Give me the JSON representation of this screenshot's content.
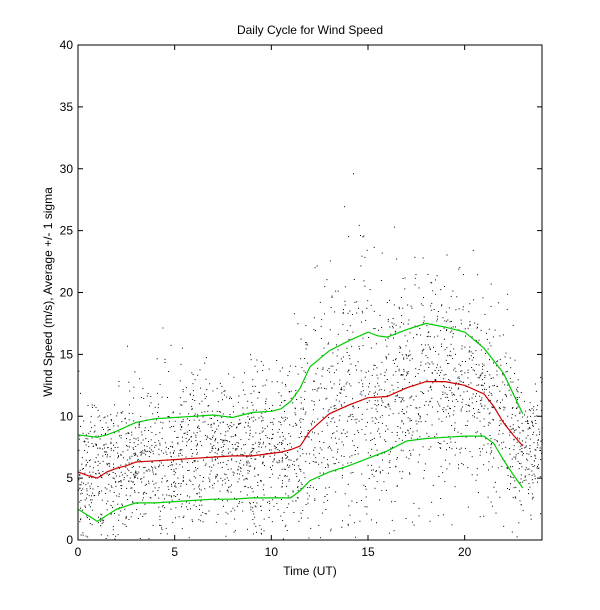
{
  "chart_data": {
    "type": "scatter",
    "title": "Daily Cycle for Wind Speed",
    "xlabel": "Time (UT)",
    "ylabel": "Wind Speed (m/s), Average +/- 1 sigma",
    "xlim": [
      0,
      24
    ],
    "ylim": [
      0,
      40
    ],
    "xticks": [
      0,
      5,
      10,
      15,
      20
    ],
    "yticks": [
      0,
      5,
      10,
      15,
      20,
      25,
      30,
      35,
      40
    ],
    "grid": false,
    "scatter_points": 3000,
    "series": [
      {
        "name": "Average",
        "color": "#cc0000",
        "x": [
          0,
          0.5,
          1,
          1.5,
          2,
          2.5,
          3,
          4,
          5,
          6,
          7,
          8,
          9,
          10,
          10.5,
          11,
          11.5,
          12,
          13,
          14,
          15,
          16,
          17,
          18,
          19,
          20,
          21,
          21.5,
          22,
          22.5,
          23
        ],
        "values": [
          5.5,
          5.2,
          5.0,
          5.5,
          5.8,
          6.0,
          6.3,
          6.4,
          6.5,
          6.6,
          6.7,
          6.8,
          6.8,
          7.0,
          7.1,
          7.3,
          7.6,
          8.8,
          10.2,
          10.9,
          11.5,
          11.6,
          12.3,
          12.8,
          12.8,
          12.5,
          11.8,
          10.8,
          9.5,
          8.5,
          7.6
        ]
      },
      {
        "name": "Average + 1 sigma",
        "color": "#00cc00",
        "x": [
          0,
          1,
          1.5,
          2,
          3,
          4,
          5,
          6,
          7,
          8,
          9,
          10,
          10.5,
          11,
          11.5,
          12,
          13,
          14,
          15,
          15.5,
          16,
          17,
          18,
          19,
          20,
          21,
          22,
          23
        ],
        "values": [
          8.5,
          8.3,
          8.5,
          8.8,
          9.5,
          9.8,
          9.9,
          10.0,
          10.1,
          9.9,
          10.3,
          10.4,
          10.6,
          11.2,
          12.3,
          14.0,
          15.3,
          16.1,
          16.8,
          16.5,
          16.4,
          17.0,
          17.5,
          17.2,
          16.8,
          15.5,
          13.5,
          10.2
        ]
      },
      {
        "name": "Average - 1 sigma",
        "color": "#00cc00",
        "x": [
          0,
          0.5,
          1,
          1.5,
          2,
          3,
          4,
          5,
          6,
          7,
          8,
          9,
          10,
          11,
          11.5,
          12,
          13,
          14,
          15,
          16,
          17,
          18,
          19,
          20,
          21,
          21.5,
          22,
          22.5,
          23
        ],
        "values": [
          2.5,
          2.0,
          1.5,
          2.0,
          2.5,
          3.0,
          3.0,
          3.1,
          3.2,
          3.3,
          3.3,
          3.4,
          3.4,
          3.4,
          4.0,
          4.8,
          5.5,
          6.0,
          6.6,
          7.2,
          8.0,
          8.2,
          8.3,
          8.4,
          8.4,
          7.8,
          6.5,
          5.3,
          4.2
        ]
      }
    ]
  }
}
